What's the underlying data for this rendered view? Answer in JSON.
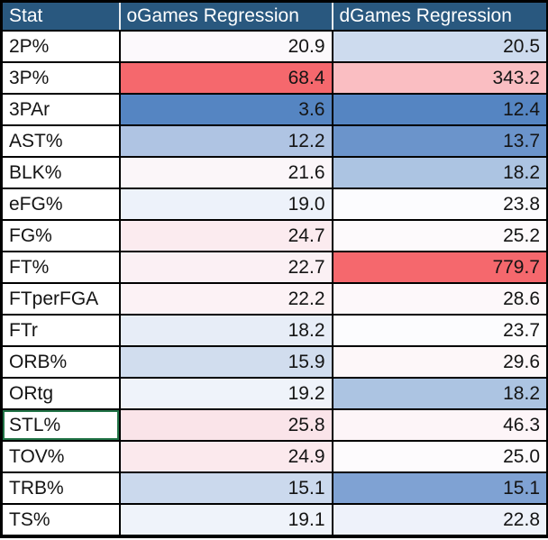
{
  "table": {
    "columns": [
      {
        "label": "Stat"
      },
      {
        "label": "oGames Regression"
      },
      {
        "label": "dGames Regression"
      }
    ],
    "rows": [
      {
        "stat": "2P%",
        "o": "20.9",
        "o_bg": "#FCF9FC",
        "d": "20.5",
        "d_bg": "#CDDBEE",
        "selected": false
      },
      {
        "stat": "3P%",
        "o": "68.4",
        "o_bg": "#F5686D",
        "d": "343.2",
        "d_bg": "#FABEC2",
        "selected": false
      },
      {
        "stat": "3PAr",
        "o": "3.6",
        "o_bg": "#5585C2",
        "d": "12.4",
        "d_bg": "#5585C2",
        "selected": false
      },
      {
        "stat": "AST%",
        "o": "12.2",
        "o_bg": "#AFC4E3",
        "d": "13.7",
        "d_bg": "#6B94CB",
        "selected": false
      },
      {
        "stat": "BLK%",
        "o": "21.6",
        "o_bg": "#FBF6F9",
        "d": "18.2",
        "d_bg": "#ACC4E2",
        "selected": false
      },
      {
        "stat": "eFG%",
        "o": "19.0",
        "o_bg": "#EDF2FA",
        "d": "23.8",
        "d_bg": "#FCFCFE",
        "selected": false
      },
      {
        "stat": "FG%",
        "o": "24.7",
        "o_bg": "#FBEBEF",
        "d": "25.2",
        "d_bg": "#FDFAFC",
        "selected": false
      },
      {
        "stat": "FT%",
        "o": "22.7",
        "o_bg": "#FBF0F4",
        "d": "779.7",
        "d_bg": "#F5686D",
        "selected": false
      },
      {
        "stat": "FTperFGA",
        "o": "22.2",
        "o_bg": "#FCF2F5",
        "d": "28.6",
        "d_bg": "#FDF8FA",
        "selected": false
      },
      {
        "stat": "FTr",
        "o": "18.2",
        "o_bg": "#E7EDF7",
        "d": "23.7",
        "d_bg": "#FCFCFE",
        "selected": false
      },
      {
        "stat": "ORB%",
        "o": "15.9",
        "o_bg": "#D1DDEE",
        "d": "29.6",
        "d_bg": "#FDF7F9",
        "selected": false
      },
      {
        "stat": "ORtg",
        "o": "19.2",
        "o_bg": "#EFF3FA",
        "d": "18.2",
        "d_bg": "#ACC4E2",
        "selected": false
      },
      {
        "stat": "STL%",
        "o": "25.8",
        "o_bg": "#FAE4E9",
        "d": "46.3",
        "d_bg": "#FDF5F8",
        "selected": true
      },
      {
        "stat": "TOV%",
        "o": "24.9",
        "o_bg": "#FBE9ED",
        "d": "25.0",
        "d_bg": "#FDFBFD",
        "selected": false
      },
      {
        "stat": "TRB%",
        "o": "15.1",
        "o_bg": "#CBD9ED",
        "d": "15.1",
        "d_bg": "#7FA2D3",
        "selected": false
      },
      {
        "stat": "TS%",
        "o": "19.1",
        "o_bg": "#EFF3FA",
        "d": "22.8",
        "d_bg": "#EEF2FA",
        "selected": false
      }
    ]
  },
  "colors": {
    "header_bg": "#29587F",
    "header_text": "#FFFFFF",
    "grid_border": "#000000",
    "scale_low_blue": "#5585C2",
    "scale_mid_white": "#FCFCFF",
    "scale_high_red": "#F5686D",
    "selection_green": "#217346"
  }
}
